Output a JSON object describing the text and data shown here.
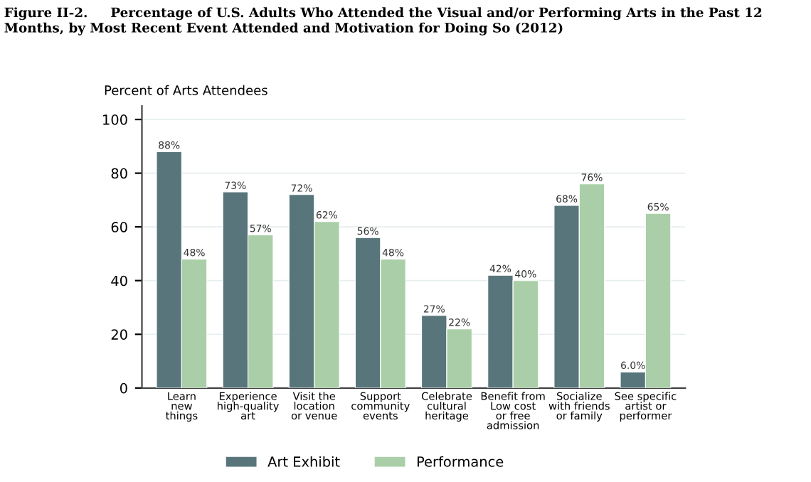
{
  "chart_data": {
    "type": "bar",
    "title": "Figure II-2.     Percentage of U.S. Adults Who Attended the Visual and/or Performing Arts in the Past 12\nMonths, by Most Recent Event Attended and Motivation for Doing So (2012)",
    "ylabel": "Percent of Arts Attendees",
    "categories": [
      "Learn\nnew\nthings",
      "Experience\nhigh-quality\nart",
      "Visit the\nlocation\nor venue",
      "Support\ncommunity\nevents",
      "Celebrate\ncultural\nheritage",
      "Benefit from\nLow cost\nor free\nadmission",
      "Socialize\nwith friends\nor family",
      "See specific\nartist or\nperformer"
    ],
    "series": [
      {
        "name": "Art Exhibit",
        "color": "#58757b",
        "values": [
          88,
          73,
          72,
          56,
          27,
          42,
          68,
          6.0
        ],
        "value_labels": [
          "88%",
          "73%",
          "72%",
          "56%",
          "27%",
          "42%",
          "68%",
          "6.0%"
        ]
      },
      {
        "name": "Performance",
        "color": "#aacfa8",
        "values": [
          48,
          57,
          62,
          48,
          22,
          40,
          76,
          65
        ],
        "value_labels": [
          "48%",
          "57%",
          "62%",
          "48%",
          "22%",
          "40%",
          "76%",
          "65%"
        ]
      }
    ],
    "ylim": [
      0,
      105
    ],
    "yticks": [
      0,
      20,
      40,
      60,
      80,
      100
    ],
    "grid": "y",
    "legend": "bottom"
  }
}
